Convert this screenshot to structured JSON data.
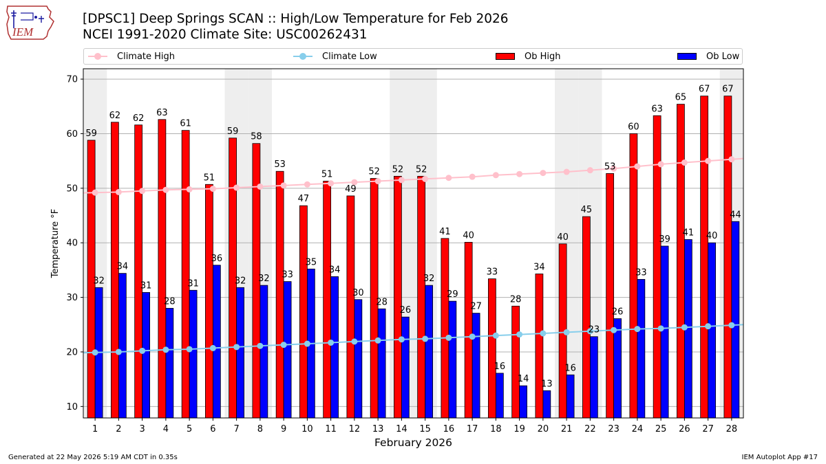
{
  "logo": {
    "text": "IEM",
    "icon": "iowa-state-outline-weather-station-logo"
  },
  "header": {
    "title_line1": "[DPSC1] Deep Springs SCAN :: High/Low Temperature for Feb 2026",
    "title_line2": "NCEI 1991-2020 Climate Site: USC00262431"
  },
  "legend": {
    "items": [
      {
        "label": "Climate High",
        "kind": "line",
        "color": "#ffc0cb"
      },
      {
        "label": "Climate Low",
        "kind": "line",
        "color": "#87ceeb"
      },
      {
        "label": "Ob High",
        "kind": "bar",
        "color": "#ff0000"
      },
      {
        "label": "Ob Low",
        "kind": "bar",
        "color": "#0000ff"
      }
    ],
    "placement": "top, above plot"
  },
  "chart_data": {
    "type": "bar",
    "xlabel": "February 2026",
    "ylabel": "Temperature °F",
    "ylim": [
      7.9,
      71.9
    ],
    "yticks": [
      10,
      20,
      30,
      40,
      50,
      60,
      70
    ],
    "grid": "horizontal",
    "categories": [
      "1",
      "2",
      "3",
      "4",
      "5",
      "6",
      "7",
      "8",
      "9",
      "10",
      "11",
      "12",
      "13",
      "14",
      "15",
      "16",
      "17",
      "18",
      "19",
      "20",
      "21",
      "22",
      "23",
      "24",
      "25",
      "26",
      "27",
      "28"
    ],
    "weekend_shading_days": [
      1,
      7,
      8,
      14,
      15,
      21,
      22,
      28
    ],
    "series": [
      {
        "name": "Ob High",
        "type": "bar",
        "color": "#ff0000",
        "values": [
          58.8,
          62.1,
          61.6,
          62.6,
          60.6,
          50.7,
          59.2,
          58.2,
          53.1,
          46.8,
          51.3,
          48.6,
          51.8,
          52.2,
          52.2,
          40.8,
          40.1,
          33.4,
          28.4,
          34.3,
          39.8,
          44.8,
          52.7,
          60.0,
          63.3,
          65.4,
          66.9,
          66.9
        ],
        "labels": [
          "59",
          "62",
          "62",
          "63",
          "61",
          "51",
          "59",
          "58",
          "53",
          "47",
          "51",
          "49",
          "52",
          "52",
          "52",
          "41",
          "40",
          "33",
          "28",
          "34",
          "40",
          "45",
          "53",
          "60",
          "63",
          "65",
          "67",
          "67"
        ]
      },
      {
        "name": "Ob Low",
        "type": "bar",
        "color": "#0000ff",
        "values": [
          31.8,
          34.4,
          30.9,
          28.0,
          31.3,
          35.9,
          31.8,
          32.2,
          32.9,
          35.2,
          33.8,
          29.6,
          27.9,
          26.4,
          32.2,
          29.3,
          27.1,
          16.1,
          13.8,
          12.9,
          15.8,
          22.8,
          26.1,
          33.3,
          39.4,
          40.6,
          40.0,
          43.9
        ],
        "labels": [
          "32",
          "34",
          "31",
          "28",
          "31",
          "36",
          "32",
          "32",
          "33",
          "35",
          "34",
          "30",
          "28",
          "26",
          "32",
          "29",
          "27",
          "16",
          "14",
          "13",
          "16",
          "23",
          "26",
          "33",
          "39",
          "41",
          "40",
          "44"
        ]
      },
      {
        "name": "Climate High",
        "type": "line",
        "color": "#ffc0cb",
        "values": [
          49.2,
          49.3,
          49.5,
          49.7,
          49.8,
          49.9,
          50.1,
          50.3,
          50.5,
          50.7,
          50.9,
          51.1,
          51.3,
          51.5,
          51.7,
          51.9,
          52.1,
          52.4,
          52.6,
          52.8,
          53.0,
          53.3,
          53.6,
          54.0,
          54.4,
          54.7,
          55.0,
          55.3
        ]
      },
      {
        "name": "Climate Low",
        "type": "line",
        "color": "#87ceeb",
        "values": [
          19.9,
          20.0,
          20.2,
          20.4,
          20.5,
          20.7,
          20.9,
          21.1,
          21.3,
          21.5,
          21.7,
          21.9,
          22.1,
          22.3,
          22.4,
          22.6,
          22.8,
          23.0,
          23.2,
          23.4,
          23.6,
          23.8,
          24.0,
          24.2,
          24.3,
          24.5,
          24.7,
          24.9
        ]
      }
    ]
  },
  "footer": {
    "left": "Generated at 22 May 2026 5:19 AM CDT in 0.35s",
    "right": "IEM Autoplot App #17"
  }
}
